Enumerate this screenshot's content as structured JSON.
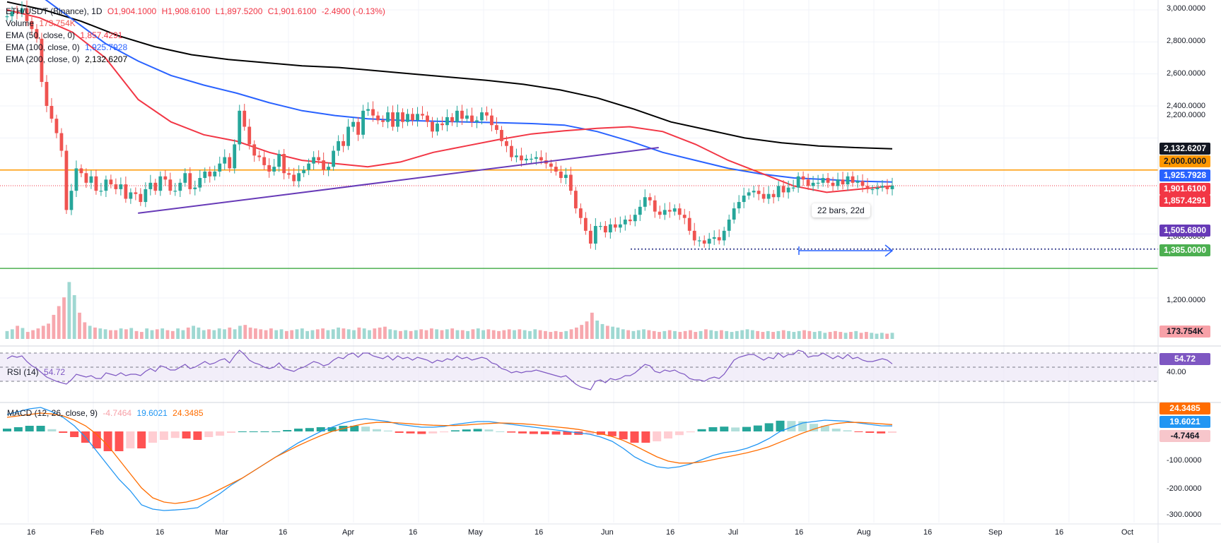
{
  "legend": {
    "symbol": "ETH/USDT (Binance), 1D",
    "open": "O1,904.1000",
    "high": "H1,908.6100",
    "low": "L1,897.5200",
    "close": "C1,901.6100",
    "change": "-2.4900 (-0.13%)",
    "volume_label": "Volume",
    "volume_value": "173.754K",
    "ema50_label": "EMA (50, close, 0)",
    "ema50_value": "1,857.4291",
    "ema100_label": "EMA (100, close, 0)",
    "ema100_value": "1,925.7928",
    "ema200_label": "EMA (200, close, 0)",
    "ema200_value": "2,132.6207"
  },
  "rsi_legend": {
    "label": "RSI (14)",
    "value": "54.72",
    "level_label": "40.00"
  },
  "macd_legend": {
    "label": "MACD (12, 26, close, 9)",
    "hist": "-4.7464",
    "macd": "19.6021",
    "signal": "24.3485"
  },
  "annotation": {
    "text": "22 bars, 22d"
  },
  "tags": {
    "ema200": "2,132.6207",
    "level_orange": "2,000.0000",
    "ema100": "1,925.7928",
    "last_price": "1,901.6100",
    "ema50": "1,857.4291",
    "low_line": "1,505.6800",
    "level_green": "1,385.0000",
    "volume": "173.754K",
    "rsi": "54.72",
    "macd_signal": "24.3485",
    "macd": "19.6021",
    "macd_hist": "-4.7464"
  },
  "colors": {
    "up": "#26a69a",
    "down": "#ef5350",
    "ema50": "#f23645",
    "ema100": "#2962ff",
    "ema200": "#000000",
    "trendline": "#673ab7",
    "orange_level": "#ff9800",
    "green_level": "#4caf50",
    "rsi": "#7e57c2",
    "macd": "#2196f3",
    "signal": "#ff6d00"
  },
  "chart_data": {
    "type": "candlestick",
    "price_axis_ticks": [
      "3,000.0000",
      "2,800.0000",
      "2,600.0000",
      "2,400.0000",
      "2,200.0000",
      "1,600.0000",
      "1,200.0000"
    ],
    "macd_axis_ticks": [
      "-100.0000",
      "-200.0000",
      "-300.0000"
    ],
    "time_axis_ticks": [
      "16",
      "Feb",
      "16",
      "Mar",
      "16",
      "Apr",
      "16",
      "May",
      "16",
      "Jun",
      "16",
      "Jul",
      "16",
      "Aug",
      "16",
      "Sep",
      "16",
      "Oct"
    ],
    "levels": {
      "orange": 2000,
      "green": 1385,
      "low": 1505.68,
      "last": 1901.61
    },
    "close_series": [
      2960,
      2990,
      2980,
      3010,
      2930,
      2880,
      2820,
      2550,
      2400,
      2320,
      2230,
      2120,
      1750,
      1870,
      2010,
      1980,
      1920,
      1960,
      1870,
      1870,
      1940,
      1910,
      1880,
      1910,
      1820,
      1860,
      1850,
      1800,
      1880,
      1920,
      1870,
      1960,
      1940,
      1870,
      1870,
      1920,
      1980,
      1880,
      1890,
      1950,
      1990,
      1960,
      1990,
      2040,
      2080,
      2010,
      2160,
      2370,
      2270,
      2160,
      2090,
      2080,
      2030,
      1990,
      2020,
      2100,
      1980,
      1970,
      1930,
      1980,
      2000,
      2040,
      2080,
      2060,
      2000,
      2020,
      2120,
      2180,
      2150,
      2270,
      2300,
      2220,
      2370,
      2380,
      2340,
      2310,
      2300,
      2360,
      2270,
      2360,
      2300,
      2350,
      2310,
      2350,
      2340,
      2300,
      2240,
      2290,
      2280,
      2330,
      2300,
      2370,
      2320,
      2340,
      2300,
      2310,
      2360,
      2340,
      2280,
      2250,
      2180,
      2150,
      2080,
      2090,
      2060,
      2070,
      2070,
      2080,
      2060,
      2040,
      2020,
      1990,
      1950,
      1970,
      1870,
      1760,
      1700,
      1620,
      1540,
      1650,
      1650,
      1610,
      1660,
      1640,
      1660,
      1690,
      1680,
      1720,
      1770,
      1830,
      1810,
      1740,
      1720,
      1750,
      1740,
      1760,
      1720,
      1700,
      1620,
      1560,
      1560,
      1540,
      1570,
      1580,
      1560,
      1620,
      1690,
      1760,
      1800,
      1840,
      1860,
      1870,
      1850,
      1820,
      1850,
      1830,
      1900,
      1860,
      1890,
      1890,
      1960,
      1940,
      1900,
      1920,
      1920,
      1950,
      1920,
      1900,
      1940,
      1910,
      1960,
      1920,
      1930,
      1900,
      1880,
      1880,
      1890,
      1900,
      1880,
      1901.61
    ],
    "ema50_series": [
      3000,
      2950,
      2860,
      2700,
      2440,
      2300,
      2220,
      2180,
      2110,
      2060,
      2040,
      2020,
      2050,
      2110,
      2150,
      2190,
      2225,
      2245,
      2260,
      2270,
      2240,
      2160,
      2060,
      1980,
      1900,
      1860,
      1880,
      1900
    ],
    "ema100_series": [
      3180,
      3090,
      2940,
      2790,
      2680,
      2590,
      2530,
      2480,
      2420,
      2370,
      2340,
      2320,
      2310,
      2305,
      2300,
      2295,
      2290,
      2280,
      2240,
      2180,
      2110,
      2060,
      2010,
      1975,
      1950,
      1940,
      1930,
      1925
    ],
    "ema200_series": [
      3050,
      3000,
      2930,
      2840,
      2770,
      2720,
      2690,
      2670,
      2650,
      2640,
      2620,
      2600,
      2580,
      2560,
      2535,
      2500,
      2450,
      2380,
      2300,
      2250,
      2200,
      2170,
      2150,
      2140,
      2132
    ],
    "trendline": [
      [
        0.1,
        1730
      ],
      [
        0.84,
        2140
      ]
    ],
    "volume_series": [
      18,
      22,
      30,
      25,
      16,
      20,
      24,
      30,
      35,
      55,
      75,
      95,
      130,
      100,
      60,
      38,
      30,
      26,
      24,
      22,
      20,
      20,
      24,
      22,
      25,
      18,
      16,
      24,
      20,
      22,
      24,
      20,
      18,
      24,
      20,
      26,
      30,
      26,
      20,
      22,
      20,
      24,
      22,
      26,
      22,
      30,
      32,
      26,
      24,
      22,
      20,
      24,
      20,
      22,
      18,
      20,
      22,
      24,
      18,
      20,
      22,
      24,
      20,
      22,
      26,
      24,
      22,
      20,
      26,
      24,
      20,
      24,
      26,
      28,
      22,
      20,
      18,
      20,
      18,
      20,
      22,
      20,
      24,
      22,
      20,
      22,
      24,
      20,
      20,
      18,
      22,
      24,
      20,
      22,
      20,
      18,
      20,
      22,
      20,
      22,
      20,
      18,
      22,
      20,
      18,
      16,
      18,
      16,
      18,
      22,
      26,
      32,
      40,
      60,
      42,
      34,
      30,
      28,
      26,
      22,
      20,
      18,
      20,
      22,
      20,
      18,
      16,
      18,
      20,
      18,
      16,
      18,
      20,
      16,
      18,
      22,
      20,
      18,
      20,
      18,
      16,
      18,
      20,
      22,
      20,
      18,
      16,
      18,
      16,
      18,
      20,
      18,
      16,
      18,
      20,
      18,
      16,
      18,
      14,
      16,
      18,
      16,
      14,
      16,
      18,
      14,
      16,
      14,
      12,
      14,
      12,
      14
    ],
    "rsi_series": [
      62,
      66,
      64,
      66,
      58,
      52,
      48,
      42,
      36,
      33,
      30,
      28,
      26,
      32,
      40,
      38,
      36,
      38,
      34,
      34,
      42,
      40,
      38,
      42,
      38,
      40,
      40,
      38,
      44,
      48,
      44,
      52,
      50,
      46,
      46,
      50,
      54,
      48,
      50,
      54,
      58,
      54,
      56,
      60,
      62,
      56,
      66,
      74,
      68,
      60,
      56,
      54,
      50,
      48,
      50,
      56,
      48,
      46,
      44,
      48,
      50,
      54,
      58,
      56,
      52,
      54,
      60,
      64,
      62,
      68,
      70,
      64,
      70,
      70,
      66,
      64,
      62,
      66,
      60,
      66,
      62,
      64,
      60,
      64,
      62,
      60,
      56,
      60,
      58,
      62,
      60,
      66,
      62,
      64,
      60,
      62,
      64,
      62,
      56,
      54,
      48,
      46,
      42,
      44,
      42,
      44,
      44,
      46,
      44,
      42,
      40,
      38,
      36,
      38,
      32,
      26,
      22,
      20,
      18,
      30,
      32,
      28,
      34,
      32,
      34,
      38,
      38,
      42,
      48,
      54,
      52,
      44,
      42,
      46,
      44,
      46,
      42,
      40,
      34,
      32,
      32,
      30,
      34,
      36,
      34,
      40,
      50,
      60,
      64,
      66,
      68,
      68,
      64,
      60,
      64,
      62,
      70,
      64,
      68,
      68,
      74,
      72,
      64,
      66,
      66,
      70,
      66,
      62,
      66,
      62,
      68,
      62,
      64,
      60,
      58,
      58,
      60,
      62,
      60,
      54.72
    ],
    "macd_series": [
      60,
      70,
      80,
      85,
      70,
      50,
      20,
      -20,
      -70,
      -120,
      -170,
      -210,
      -260,
      -275,
      -280,
      -278,
      -275,
      -270,
      -245,
      -220,
      -190,
      -165,
      -140,
      -115,
      -90,
      -65,
      -40,
      -20,
      0,
      15,
      30,
      40,
      45,
      40,
      35,
      25,
      20,
      15,
      15,
      18,
      25,
      30,
      35,
      35,
      30,
      25,
      20,
      15,
      10,
      5,
      0,
      -5,
      -10,
      -20,
      -35,
      -60,
      -90,
      -110,
      -125,
      -130,
      -125,
      -115,
      -100,
      -85,
      -75,
      -70,
      -60,
      -45,
      -25,
      0,
      15,
      30,
      35,
      40,
      38,
      36,
      30,
      25,
      20,
      19.6
    ],
    "signal_series": [
      50,
      55,
      60,
      65,
      62,
      55,
      40,
      20,
      -10,
      -50,
      -100,
      -150,
      -200,
      -235,
      -250,
      -255,
      -250,
      -240,
      -225,
      -205,
      -185,
      -165,
      -140,
      -115,
      -90,
      -70,
      -50,
      -32,
      -15,
      0,
      10,
      20,
      28,
      32,
      32,
      30,
      27,
      24,
      22,
      21,
      21,
      23,
      26,
      28,
      30,
      29,
      27,
      24,
      20,
      16,
      12,
      7,
      0,
      -8,
      -18,
      -32,
      -50,
      -70,
      -90,
      -105,
      -112,
      -112,
      -108,
      -100,
      -92,
      -84,
      -76,
      -66,
      -54,
      -38,
      -22,
      -6,
      8,
      20,
      28,
      32,
      32,
      30,
      27,
      24.35
    ],
    "macd_hist_series": [
      10,
      15,
      20,
      20,
      8,
      -5,
      -20,
      -40,
      -60,
      -70,
      -70,
      -60,
      -60,
      -40,
      -30,
      -23,
      -25,
      -30,
      -20,
      -15,
      -5,
      0,
      0,
      0,
      0,
      5,
      10,
      12,
      15,
      15,
      20,
      20,
      17,
      8,
      3,
      -5,
      -7,
      -9,
      -7,
      -3,
      4,
      7,
      9,
      7,
      0,
      -4,
      -7,
      -9,
      -10,
      -11,
      -12,
      -12,
      -10,
      -12,
      -17,
      -28,
      -40,
      -40,
      -35,
      -25,
      -13,
      -3,
      8,
      15,
      17,
      14,
      16,
      21,
      29,
      38,
      37,
      36,
      27,
      20,
      10,
      4,
      -2,
      -5,
      -7,
      -4.75
    ]
  }
}
